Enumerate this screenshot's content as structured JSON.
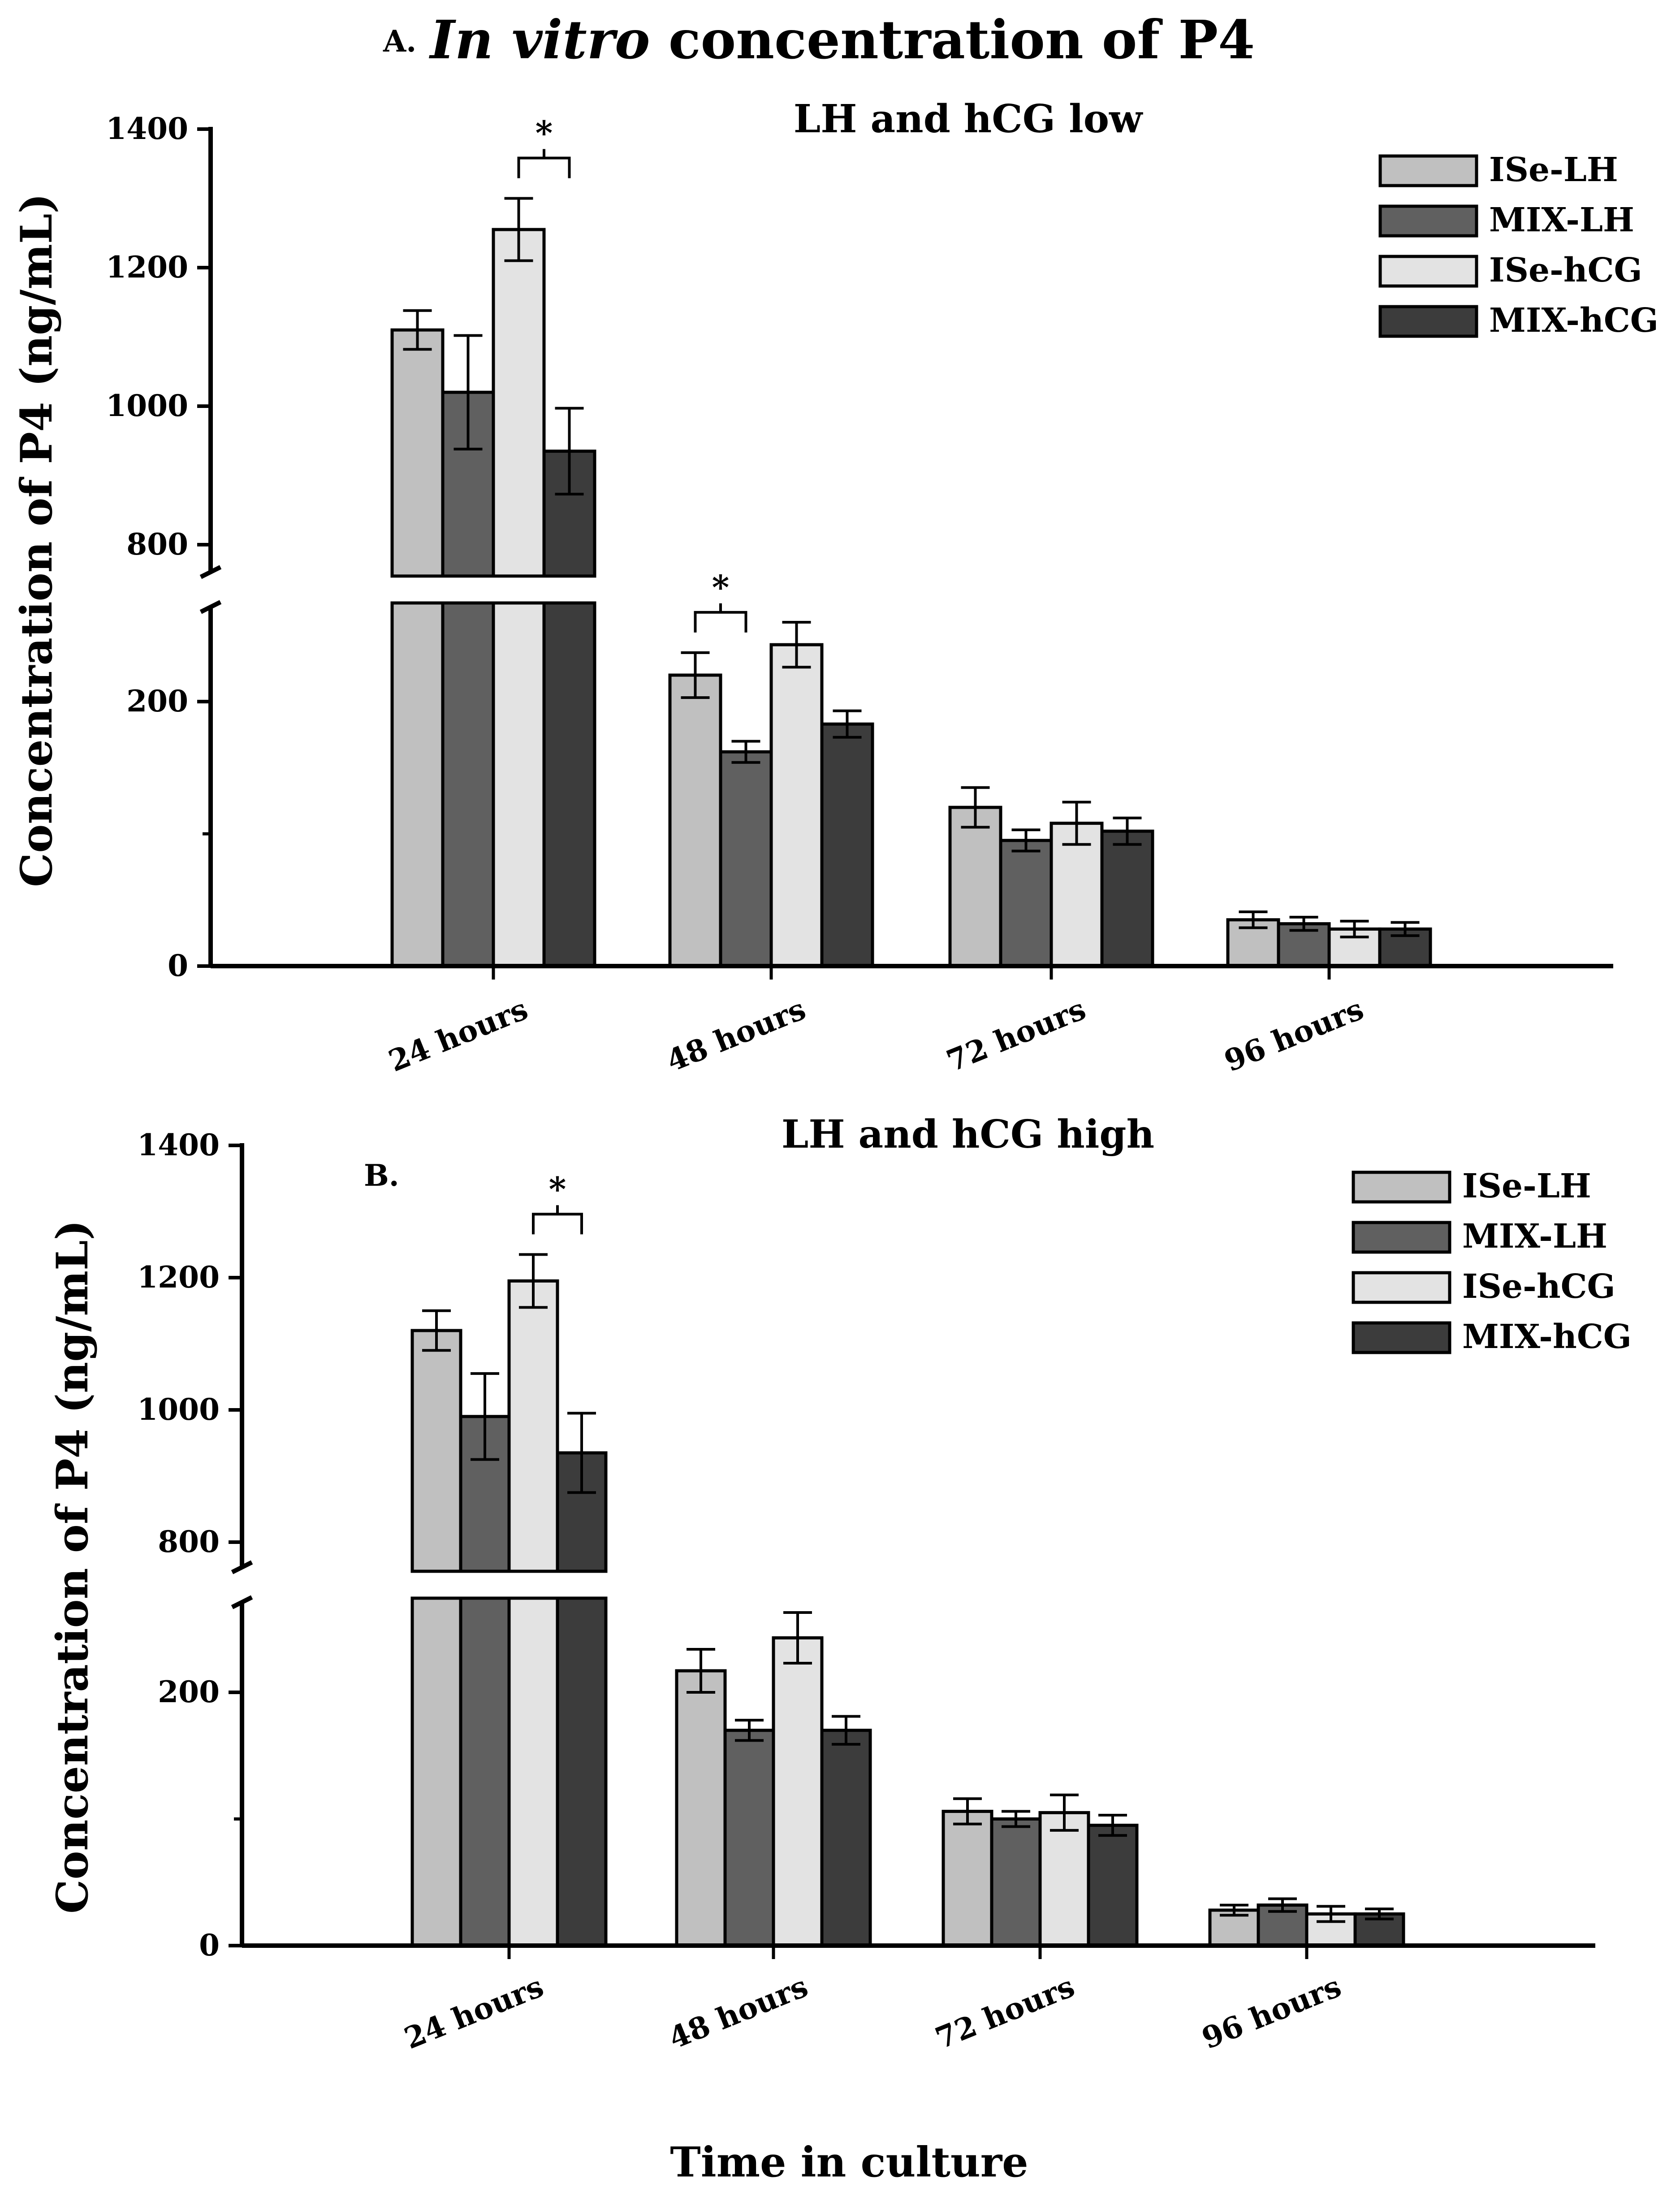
{
  "figure": {
    "title_italic": "In vitro",
    "title_rest": " concentration of P4",
    "xlabel": "Time in culture"
  },
  "chart_data": [
    {
      "type": "bar",
      "panel_label": "A.",
      "title": "LH and hCG low",
      "ylabel": "Concentration of P4 (ng/mL)",
      "xlabel": "Time in culture",
      "categories": [
        "24 hours",
        "48 hours",
        "72 hours",
        "96 hours"
      ],
      "series": [
        {
          "name": "ISe-LH",
          "color": "#c0c0c0",
          "values": [
            1110,
            220,
            120,
            35
          ],
          "errors": [
            28,
            17,
            15,
            6
          ]
        },
        {
          "name": "MIX-LH",
          "color": "#606060",
          "values": [
            1020,
            162,
            95,
            32
          ],
          "errors": [
            82,
            8,
            8,
            5
          ]
        },
        {
          "name": "ISe-hCG",
          "color": "#e3e3e3",
          "values": [
            1255,
            243,
            108,
            28
          ],
          "errors": [
            45,
            17,
            16,
            6
          ]
        },
        {
          "name": "MIX-hCG",
          "color": "#3c3c3c",
          "values": [
            935,
            183,
            102,
            28
          ],
          "errors": [
            62,
            10,
            10,
            5
          ]
        }
      ],
      "axis_break": {
        "lower_range": [
          0,
          275
        ],
        "upper_range": [
          760,
          1400
        ]
      },
      "yticks": [
        0,
        200,
        800,
        1000,
        1200,
        1400
      ],
      "significance": [
        {
          "category": "24 hours",
          "between": [
            "ISe-hCG",
            "MIX-hCG"
          ],
          "label": "*"
        },
        {
          "category": "48 hours",
          "between": [
            "ISe-LH",
            "MIX-LH"
          ],
          "label": "*"
        }
      ],
      "legend_position": "top-right"
    },
    {
      "type": "bar",
      "panel_label": "B.",
      "title": "LH and hCG high",
      "ylabel": "Concentration of P4 (ng/mL)",
      "xlabel": "Time in culture",
      "categories": [
        "24 hours",
        "48 hours",
        "72 hours",
        "96 hours"
      ],
      "series": [
        {
          "name": "ISe-LH",
          "color": "#c0c0c0",
          "values": [
            1120,
            217,
            106,
            28
          ],
          "errors": [
            30,
            17,
            10,
            4
          ]
        },
        {
          "name": "MIX-LH",
          "color": "#606060",
          "values": [
            990,
            170,
            100,
            32
          ],
          "errors": [
            65,
            8,
            6,
            5
          ]
        },
        {
          "name": "ISe-hCG",
          "color": "#e3e3e3",
          "values": [
            1195,
            243,
            105,
            25
          ],
          "errors": [
            40,
            20,
            14,
            6
          ]
        },
        {
          "name": "MIX-hCG",
          "color": "#3c3c3c",
          "values": [
            935,
            170,
            95,
            25
          ],
          "errors": [
            60,
            11,
            8,
            4
          ]
        }
      ],
      "axis_break": {
        "lower_range": [
          0,
          275
        ],
        "upper_range": [
          760,
          1400
        ]
      },
      "yticks": [
        0,
        200,
        800,
        1000,
        1200,
        1400
      ],
      "significance": [
        {
          "category": "24 hours",
          "between": [
            "ISe-hCG",
            "MIX-hCG"
          ],
          "label": "*"
        }
      ],
      "legend_position": "top-right"
    }
  ]
}
